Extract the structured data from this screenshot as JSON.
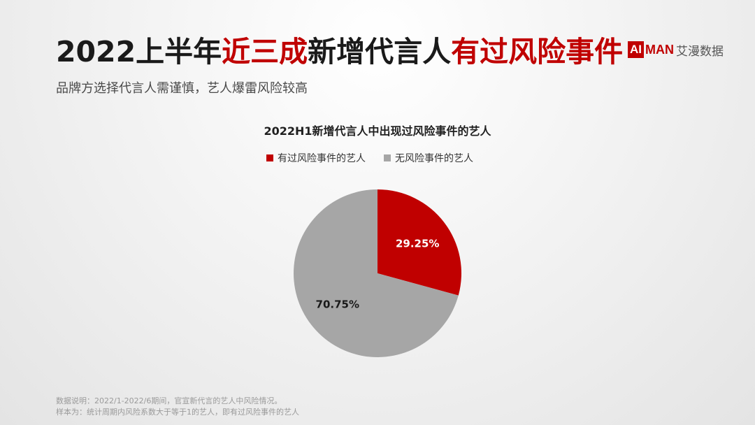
{
  "header": {
    "title_parts": [
      "2022上半年",
      "近三成",
      "新增代言人",
      "有过风险事件"
    ],
    "subtitle": "品牌方选择代言人需谨慎，艺人爆雷风险较高"
  },
  "logo": {
    "box": "AI",
    "man": "MAN",
    "cn": "艾漫数据"
  },
  "chart_data": {
    "type": "pie",
    "title": "2022H1新增代言人中出现过风险事件的艺人",
    "labels": [
      "有过风险事件的艺人",
      "无风险事件的艺人"
    ],
    "values": [
      29.25,
      70.75
    ],
    "data_labels": [
      "29.25%",
      "70.75%"
    ],
    "colors": [
      "#c00000",
      "#a6a6a6"
    ],
    "label_colors": [
      "#ffffff",
      "#1a1a1a"
    ],
    "legend_position": "top"
  },
  "notes": {
    "line1": "数据说明：2022/1-2022/6期间，官宣新代言的艺人中风险情况。",
    "line2": "样本为：统计周期内风险系数大于等于1的艺人，即有过风险事件的艺人"
  }
}
